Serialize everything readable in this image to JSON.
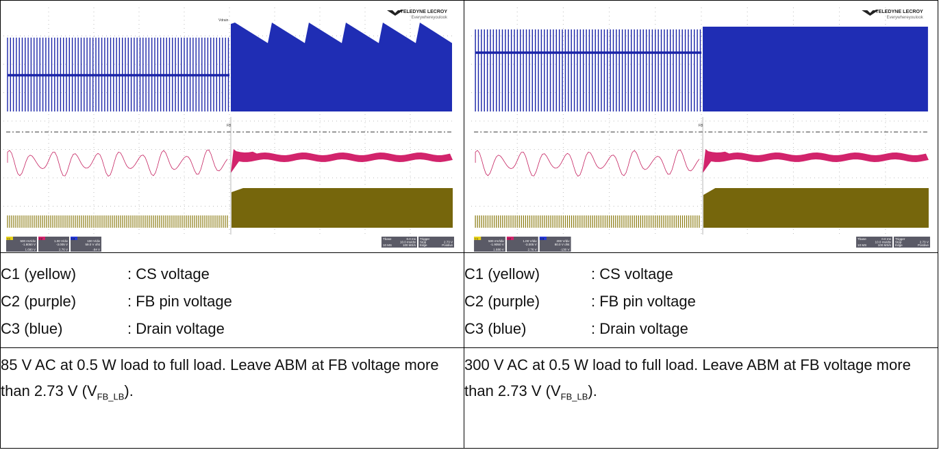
{
  "cells": [
    {
      "scope": {
        "brand": "TELEDYNE LECROY",
        "tagline": "Everywhereyoulook",
        "trace_label": "Vdrain",
        "fb_label": "FB",
        "channels": [
          {
            "name": "C1",
            "scale": "500 mV/div",
            "offset": "-1.8050 V",
            "reading": "1.680 V"
          },
          {
            "name": "C2",
            "scale": "1.00 V/div",
            "offset": "-3.005 V",
            "reading": "2.76 V"
          },
          {
            "name": "C3",
            "scale": "100 V/div",
            "offset": "59.0 V ofst",
            "reading": "-84 V"
          }
        ],
        "timebase": {
          "label": "Tbase",
          "delay": "0.0 ms",
          "scale": "10.0 ms/div",
          "samples": "10 MS",
          "rate": "100 MS/s"
        },
        "trigger": {
          "label": "Trigger",
          "mode": "Stop",
          "level": "2.73 V",
          "type": "Edge",
          "slope": "Positive"
        }
      },
      "legend": [
        {
          "channel": "C1 (yellow)",
          "desc": ": CS voltage"
        },
        {
          "channel": "C2 (purple)",
          "desc": ": FB pin voltage"
        },
        {
          "channel": "C3 (blue)",
          "desc": ": Drain voltage"
        }
      ],
      "caption": {
        "main": "85 V AC at 0.5 W load to full load. Leave ABM at FB voltage more than 2.73 V (V",
        "sub": "FB_LB",
        "end": ")."
      }
    },
    {
      "scope": {
        "brand": "TELEDYNE LECROY",
        "tagline": "Everywhereyoulook",
        "fb_label": "FB",
        "channels": [
          {
            "name": "C1",
            "scale": "500 mV/div",
            "offset": "-1.9050 V",
            "reading": "1.680 V"
          },
          {
            "name": "C2",
            "scale": "1.00 V/div",
            "offset": "-3.005 V",
            "reading": "2.76 V"
          },
          {
            "name": "C3",
            "scale": "200 V/div",
            "offset": "80.0 V ofst",
            "reading": "-130 V"
          }
        ],
        "timebase": {
          "label": "Tbase",
          "delay": "0.0 ms",
          "scale": "10.0 ms/div",
          "samples": "10 MS",
          "rate": "100 MS/s"
        },
        "trigger": {
          "label": "Trigger",
          "mode": "Stop",
          "level": "2.73 V",
          "type": "Edge",
          "slope": "Positive"
        }
      },
      "legend": [
        {
          "channel": "C1 (yellow)",
          "desc": ": CS voltage"
        },
        {
          "channel": "C2 (purple)",
          "desc": ": FB pin voltage"
        },
        {
          "channel": "C3 (blue)",
          "desc": ": Drain voltage"
        }
      ],
      "caption": {
        "main": "300 V AC at 0.5 W load to full load. Leave ABM at FB voltage more than 2.73 V (V",
        "sub": "FB_LB",
        "end": ")."
      }
    }
  ]
}
